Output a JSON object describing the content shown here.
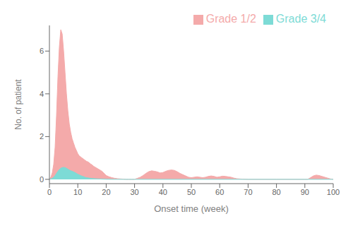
{
  "chart_data": {
    "type": "area",
    "xlabel": "Onset time (week)",
    "ylabel": "No. of patient",
    "xlim": [
      0,
      100
    ],
    "ylim": [
      -0.2,
      7.2
    ],
    "xticks": [
      0,
      10,
      20,
      30,
      40,
      50,
      60,
      70,
      80,
      90,
      100
    ],
    "yticks": [
      0,
      2,
      4,
      6
    ],
    "grid": false,
    "legend": "upper right",
    "series": [
      {
        "name": "Grade 1/2",
        "color": "#F4AAAA",
        "x": [
          0,
          0.5,
          1,
          1.5,
          2,
          2.5,
          3,
          3.5,
          4,
          4.5,
          5,
          5.5,
          6,
          6.5,
          7,
          7.5,
          8,
          8.5,
          9,
          9.5,
          10,
          10.5,
          11,
          11.5,
          12,
          12.5,
          13,
          13.5,
          14,
          14.5,
          15,
          15.5,
          16,
          16.5,
          17,
          17.5,
          18,
          18.5,
          19,
          19.5,
          20,
          21,
          22,
          23,
          24,
          25,
          26,
          27,
          28,
          29,
          30,
          31,
          32,
          33,
          34,
          35,
          36,
          37,
          38,
          39,
          40,
          41,
          42,
          43,
          44,
          45,
          46,
          47,
          48,
          49,
          50,
          51,
          52,
          53,
          54,
          55,
          56,
          57,
          58,
          59,
          60,
          61,
          62,
          63,
          64,
          65,
          66,
          68,
          70,
          80,
          90,
          91,
          92,
          93,
          94,
          95,
          96,
          97,
          98,
          99,
          100
        ],
        "values": [
          0.0,
          0.1,
          0.3,
          0.7,
          1.5,
          3.0,
          4.8,
          6.2,
          7.0,
          6.8,
          6.0,
          5.0,
          4.0,
          3.2,
          2.6,
          2.2,
          1.9,
          1.7,
          1.5,
          1.35,
          1.2,
          1.1,
          1.05,
          1.0,
          0.95,
          0.9,
          0.85,
          0.82,
          0.78,
          0.72,
          0.68,
          0.62,
          0.58,
          0.54,
          0.5,
          0.46,
          0.42,
          0.38,
          0.32,
          0.25,
          0.18,
          0.12,
          0.08,
          0.05,
          0.03,
          0.02,
          0.01,
          0.0,
          0.0,
          0.0,
          0.0,
          0.05,
          0.1,
          0.18,
          0.28,
          0.36,
          0.4,
          0.38,
          0.35,
          0.3,
          0.32,
          0.38,
          0.42,
          0.44,
          0.42,
          0.36,
          0.28,
          0.22,
          0.16,
          0.1,
          0.08,
          0.1,
          0.12,
          0.1,
          0.08,
          0.1,
          0.14,
          0.16,
          0.14,
          0.1,
          0.12,
          0.15,
          0.14,
          0.12,
          0.1,
          0.06,
          0.03,
          0.01,
          0.0,
          0.0,
          0.0,
          0.0,
          0.08,
          0.16,
          0.2,
          0.18,
          0.14,
          0.1,
          0.06,
          0.02,
          0.0
        ]
      },
      {
        "name": "Grade 3/4",
        "color": "#7DDBD6",
        "x": [
          0,
          0.5,
          1,
          1.5,
          2,
          2.5,
          3,
          3.5,
          4,
          4.5,
          5,
          5.5,
          6,
          6.5,
          7,
          7.5,
          8,
          8.5,
          9,
          9.5,
          10,
          10.5,
          11,
          11.5,
          12,
          12.5,
          13,
          14,
          15,
          16,
          17,
          18,
          19,
          20,
          22,
          24,
          26,
          28,
          30,
          100
        ],
        "values": [
          0.0,
          0.02,
          0.05,
          0.1,
          0.18,
          0.28,
          0.38,
          0.46,
          0.52,
          0.55,
          0.56,
          0.55,
          0.52,
          0.48,
          0.44,
          0.4,
          0.38,
          0.35,
          0.32,
          0.28,
          0.24,
          0.21,
          0.18,
          0.15,
          0.13,
          0.1,
          0.08,
          0.06,
          0.04,
          0.03,
          0.02,
          0.015,
          0.01,
          0.005,
          0.002,
          0.001,
          0.0,
          0.0,
          0.0,
          0.0
        ]
      }
    ]
  }
}
